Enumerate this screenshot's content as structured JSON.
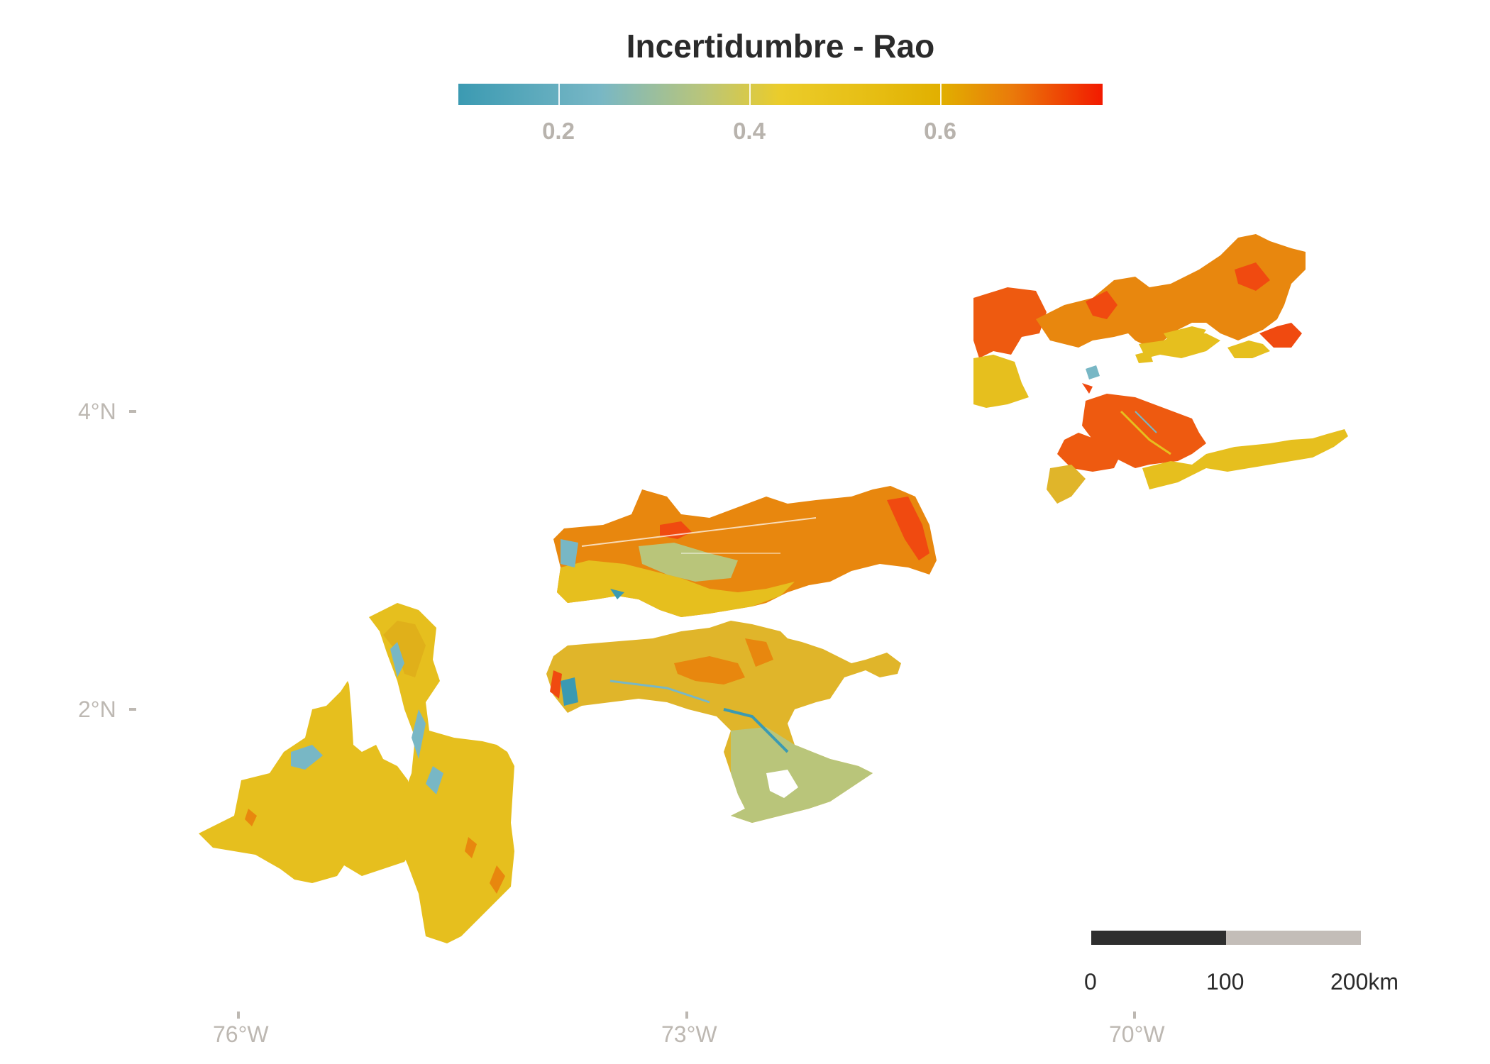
{
  "legend": {
    "title": "Incertidumbre - Rao",
    "ticks": [
      "0.2",
      "0.4",
      "0.6"
    ],
    "colors": [
      "#3b9ab2",
      "#78b7c5",
      "#ebcc2a",
      "#e1af00",
      "#f21a00"
    ]
  },
  "axes": {
    "lat_labels": [
      "4°N",
      "2°N"
    ],
    "lon_labels": [
      "76°W",
      "73°W",
      "70°W"
    ]
  },
  "scalebar": {
    "labels": [
      "0",
      "100",
      "200km"
    ]
  },
  "regions": [
    {
      "name": "southwest",
      "dominant_color": "#e6bf1e"
    },
    {
      "name": "central-north",
      "dominant_color": "#e8870e"
    },
    {
      "name": "central-south",
      "dominant_color": "#e0b52a"
    },
    {
      "name": "northeast",
      "dominant_color": "#ee5a10"
    }
  ]
}
